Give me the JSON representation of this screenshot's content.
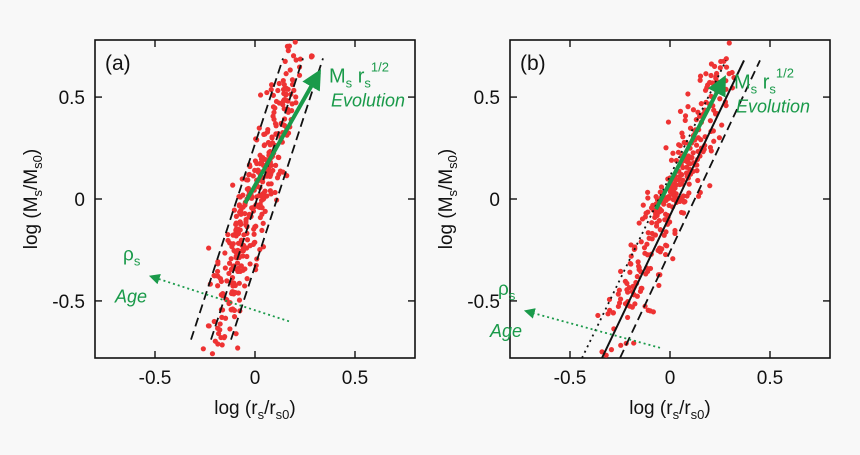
{
  "figure": {
    "background": "#f8f8f8",
    "point_color": "#ee3333",
    "annotation_color": "#1a9a4a"
  },
  "chart_data": [
    {
      "type": "scatter",
      "panel_label": "(a)",
      "xlabel": {
        "base": "log (r",
        "sub1": "s",
        "mid": "/r",
        "sub2": "s0",
        "end": ")"
      },
      "ylabel": {
        "base": "log (M",
        "sub1": "s",
        "mid": "/M",
        "sub2": "s0",
        "end": ")"
      },
      "xlim": [
        -0.8,
        0.8
      ],
      "ylim": [
        -0.78,
        0.78
      ],
      "xticks": [
        -0.5,
        0,
        0.5
      ],
      "xtick_labels": [
        "-0.5",
        "0",
        "0.5"
      ],
      "yticks": [
        -0.5,
        0,
        0.5
      ],
      "ytick_labels": [
        "-0.5",
        "0",
        "0.5"
      ],
      "reference_lines": [
        {
          "style": "dashed",
          "x": [
            -0.32,
            0.14
          ],
          "y": [
            -0.69,
            0.69
          ]
        },
        {
          "style": "dashed",
          "x": [
            -0.22,
            0.24
          ],
          "y": [
            -0.69,
            0.69
          ]
        },
        {
          "style": "dashed",
          "x": [
            -0.12,
            0.34
          ],
          "y": [
            -0.69,
            0.69
          ]
        }
      ],
      "scatter": {
        "n": 390,
        "center": [
          0.0,
          0.0
        ],
        "slope": 3.0,
        "x_sd": 0.13,
        "perp_sd": 0.09,
        "seed": 11
      },
      "evolution_arrow": {
        "x": [
          -0.05,
          0.32
        ],
        "y": [
          -0.02,
          0.62
        ],
        "label_base": "M",
        "label_sub": "s",
        "label_mid": " r",
        "label_sub2": "s",
        "label_sup": "1/2",
        "label2": "Evolution"
      },
      "age_arrow": {
        "x": [
          0.17,
          -0.52
        ],
        "y": [
          -0.6,
          -0.38
        ],
        "label": "ρ",
        "label_sub": "s",
        "label2": "Age"
      }
    },
    {
      "type": "scatter",
      "panel_label": "(b)",
      "xlabel": {
        "base": "log (r",
        "sub1": "s",
        "mid": "/r",
        "sub2": "s0",
        "end": ")"
      },
      "ylabel": {
        "base": "log (M",
        "sub1": "s",
        "mid": "/M",
        "sub2": "s0",
        "end": ")"
      },
      "xlim": [
        -0.8,
        0.8
      ],
      "ylim": [
        -0.78,
        0.78
      ],
      "xticks": [
        -0.5,
        0,
        0.5
      ],
      "xtick_labels": [
        "-0.5",
        "0",
        "0.5"
      ],
      "yticks": [
        -0.5,
        0,
        0.5
      ],
      "ytick_labels": [
        "-0.5",
        "0",
        "0.5"
      ],
      "reference_lines": [
        {
          "style": "dotted",
          "x": [
            -0.44,
            0.28
          ],
          "y": [
            -0.78,
            0.68
          ]
        },
        {
          "style": "solid",
          "x": [
            -0.34,
            0.37
          ],
          "y": [
            -0.78,
            0.68
          ]
        },
        {
          "style": "dashed",
          "x": [
            -0.25,
            0.45
          ],
          "y": [
            -0.78,
            0.68
          ]
        }
      ],
      "scatter": {
        "n": 330,
        "center": [
          0.0,
          0.0
        ],
        "slope": 2.1,
        "x_sd": 0.17,
        "perp_sd": 0.1,
        "seed": 23
      },
      "evolution_arrow": {
        "x": [
          -0.07,
          0.27
        ],
        "y": [
          -0.05,
          0.59
        ],
        "label_base": "M",
        "label_sub": "s",
        "label_mid": " r",
        "label_sub2": "s",
        "label_sup": "1/2",
        "label2": "Evolution"
      },
      "age_arrow": {
        "x": [
          -0.05,
          -0.72
        ],
        "y": [
          -0.73,
          -0.55
        ],
        "label": "ρ",
        "label_sub": "s",
        "label2": "Age"
      }
    }
  ]
}
